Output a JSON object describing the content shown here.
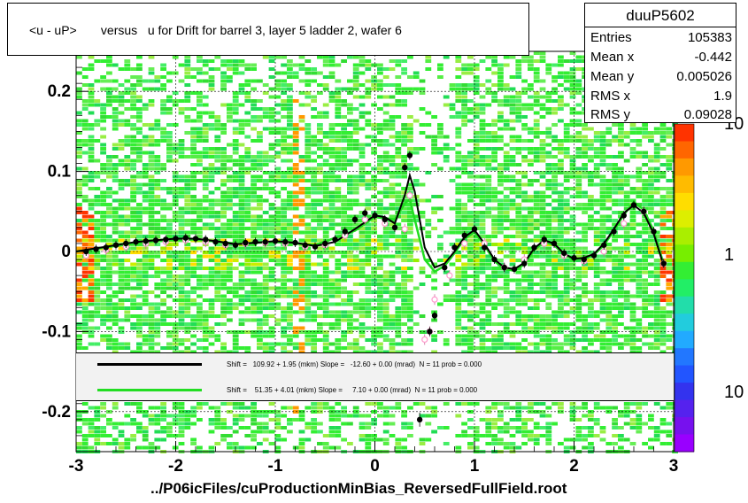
{
  "title": "<u - uP>       versus   u for Drift for barrel 3, layer 5 ladder 2, wafer 6",
  "stats": {
    "name": "duuP5602",
    "rows": [
      {
        "key": "Entries",
        "value": "105383"
      },
      {
        "key": "Mean x",
        "value": "-0.442"
      },
      {
        "key": "Mean y",
        "value": "0.005026"
      },
      {
        "key": "RMS x",
        "value": "1.9"
      },
      {
        "key": "RMS y",
        "value": "0.09028"
      }
    ]
  },
  "legend": [
    {
      "text": "Shift =   109.92 + 1.95 (mkm) Slope =   -12.60 + 0.00 (mrad)  N = 11 prob = 0.000",
      "color": "#000000"
    },
    {
      "text": "Shift =    51.35 + 4.01 (mkm) Slope =     7.10 + 0.00 (mrad)  N = 11 prob = 0.000",
      "color": "#22dd22"
    }
  ],
  "footer": "../P06icFiles/cuProductionMinBias_ReversedFullField.root",
  "colors": {
    "heat_dominant": "#33ee33",
    "fit_black": "#000000",
    "fit_green": "#22dd22",
    "points_pink": "#ff99cc"
  },
  "chart_data": {
    "type": "heatmap",
    "xlim": [
      -3,
      3
    ],
    "ylim": [
      -0.25,
      0.25
    ],
    "x_ticks": [
      -3,
      -2,
      -1,
      0,
      1,
      2,
      3
    ],
    "y_ticks": [
      -0.2,
      -0.1,
      0,
      0.1,
      0.2
    ],
    "x_tick_labels": [
      "-3",
      "-2",
      "-1",
      "0",
      "1",
      "2",
      "3"
    ],
    "y_tick_labels": [
      "-0.2",
      "-0.1",
      "0",
      "0.1",
      "0.2"
    ],
    "grid": true,
    "colorbar": {
      "scale": "log",
      "tick_labels": [
        "10",
        "1",
        "10"
      ]
    },
    "profile_black": {
      "x": [
        -2.9,
        -2.8,
        -2.7,
        -2.6,
        -2.5,
        -2.4,
        -2.3,
        -2.2,
        -2.1,
        -2.0,
        -1.9,
        -1.8,
        -1.7,
        -1.6,
        -1.5,
        -1.4,
        -1.3,
        -1.2,
        -1.1,
        -1.0,
        -0.9,
        -0.8,
        -0.7,
        -0.6,
        -0.5,
        -0.4,
        -0.3,
        -0.2,
        -0.1,
        0.0,
        0.1,
        0.2,
        0.3,
        0.35,
        0.55,
        0.6,
        0.7,
        0.8,
        0.9,
        1.0,
        1.1,
        1.2,
        1.3,
        1.4,
        1.5,
        1.6,
        1.7,
        1.8,
        1.9,
        2.0,
        2.1,
        2.2,
        2.3,
        2.4,
        2.5,
        2.6,
        2.7,
        2.8,
        2.9
      ],
      "y": [
        0.0,
        0.003,
        0.005,
        0.008,
        0.01,
        0.012,
        0.013,
        0.014,
        0.015,
        0.016,
        0.017,
        0.016,
        0.015,
        0.012,
        0.01,
        0.008,
        0.011,
        0.012,
        0.012,
        0.013,
        0.012,
        0.011,
        0.008,
        0.006,
        0.01,
        0.015,
        0.025,
        0.04,
        0.048,
        0.045,
        0.04,
        0.03,
        0.105,
        0.12,
        -0.1,
        -0.08,
        -0.02,
        0.005,
        0.02,
        0.028,
        0.005,
        -0.01,
        -0.02,
        -0.022,
        -0.015,
        0.005,
        0.015,
        0.01,
        -0.002,
        -0.008,
        -0.01,
        -0.005,
        0.008,
        0.025,
        0.045,
        0.058,
        0.05,
        0.025,
        -0.015
      ]
    },
    "profile_pink": {
      "x": [
        -2.9,
        -2.7,
        -2.5,
        -2.3,
        -2.1,
        -1.9,
        -1.7,
        -1.5,
        -1.3,
        -1.1,
        -0.9,
        -0.7,
        -0.5,
        -0.3,
        -0.1,
        0.1,
        0.3,
        0.35,
        0.5,
        0.55,
        0.6,
        0.75,
        0.9,
        1.1,
        1.3,
        1.5,
        1.7,
        1.9,
        2.1,
        2.3,
        2.5,
        2.7,
        2.9
      ],
      "y": [
        -0.005,
        0.002,
        0.006,
        0.01,
        0.012,
        0.014,
        0.012,
        0.008,
        0.01,
        0.011,
        0.01,
        0.006,
        0.008,
        0.02,
        0.04,
        0.035,
        0.028,
        0.07,
        -0.11,
        -0.1,
        -0.06,
        -0.03,
        0.01,
        0.01,
        -0.02,
        -0.01,
        0.01,
        -0.005,
        -0.012,
        0.0,
        0.035,
        0.05,
        -0.015
      ]
    },
    "isolated_point": {
      "x": 0.45,
      "y": -0.21
    },
    "fit_black": {
      "x": [
        -3.0,
        -2.8,
        -2.6,
        -2.4,
        -2.2,
        -2.0,
        -1.8,
        -1.6,
        -1.4,
        -1.2,
        -1.0,
        -0.8,
        -0.6,
        -0.4,
        -0.2,
        0.0,
        0.1,
        0.2,
        0.3,
        0.35,
        0.4,
        0.5,
        0.6,
        0.7,
        0.8,
        0.9,
        1.0,
        1.1,
        1.2,
        1.3,
        1.4,
        1.5,
        1.6,
        1.7,
        1.8,
        1.9,
        2.0,
        2.1,
        2.2,
        2.3,
        2.4,
        2.5,
        2.6,
        2.7,
        2.8,
        2.9
      ],
      "y": [
        0.0,
        0.004,
        0.008,
        0.012,
        0.014,
        0.016,
        0.016,
        0.013,
        0.009,
        0.011,
        0.013,
        0.011,
        0.007,
        0.012,
        0.028,
        0.045,
        0.043,
        0.035,
        0.07,
        0.095,
        0.075,
        0.005,
        -0.02,
        -0.015,
        0.0,
        0.018,
        0.027,
        0.01,
        -0.01,
        -0.02,
        -0.022,
        -0.014,
        0.004,
        0.014,
        0.01,
        -0.003,
        -0.009,
        -0.008,
        -0.003,
        0.01,
        0.028,
        0.048,
        0.058,
        0.048,
        0.022,
        -0.018
      ]
    },
    "fit_green": {
      "x": [
        -3.0,
        -2.6,
        -2.2,
        -1.8,
        -1.4,
        -1.0,
        -0.6,
        -0.2,
        0.0,
        0.2,
        0.3,
        0.35,
        0.4,
        0.5,
        0.6,
        0.7,
        0.8,
        0.9,
        1.0,
        1.1,
        1.2,
        1.3,
        1.4,
        1.5,
        1.6,
        1.7,
        1.8,
        1.9,
        2.0,
        2.1,
        2.2,
        2.3,
        2.4,
        2.5,
        2.6,
        2.7,
        2.8,
        2.9
      ],
      "y": [
        0.0,
        0.007,
        0.013,
        0.015,
        0.01,
        0.012,
        0.008,
        0.026,
        0.043,
        0.04,
        0.06,
        0.065,
        0.04,
        -0.01,
        -0.025,
        -0.018,
        -0.002,
        0.016,
        0.024,
        0.008,
        -0.012,
        -0.022,
        -0.024,
        -0.016,
        0.002,
        0.012,
        0.008,
        -0.004,
        -0.01,
        -0.01,
        -0.004,
        0.008,
        0.026,
        0.046,
        0.062,
        0.052,
        0.026,
        -0.016
      ]
    }
  }
}
